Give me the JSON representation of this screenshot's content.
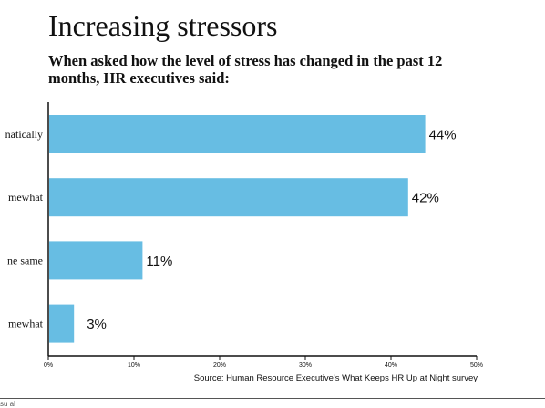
{
  "chart_data": {
    "type": "bar",
    "orientation": "horizontal",
    "title": "Increasing stressors",
    "subtitle": "When asked how the level of stress has changed in the past 12 months, HR executives said:",
    "categories": [
      "natically",
      "mewhat",
      "ne same",
      "mewhat"
    ],
    "values": [
      44,
      42,
      11,
      3
    ],
    "value_labels": [
      "44%",
      "42%",
      "11%",
      "3%"
    ],
    "xlim": [
      0,
      50
    ],
    "x_ticks": [
      0,
      10,
      20,
      30,
      40,
      50
    ],
    "x_tick_labels": [
      "0%",
      "10%",
      "20%",
      "30%",
      "40%",
      "50%"
    ],
    "bar_color": "#67bde3",
    "grid": false,
    "source": "Source: Human Resource Executive's What Keeps HR Up at Night survey"
  },
  "footer": {
    "text": "su al"
  }
}
